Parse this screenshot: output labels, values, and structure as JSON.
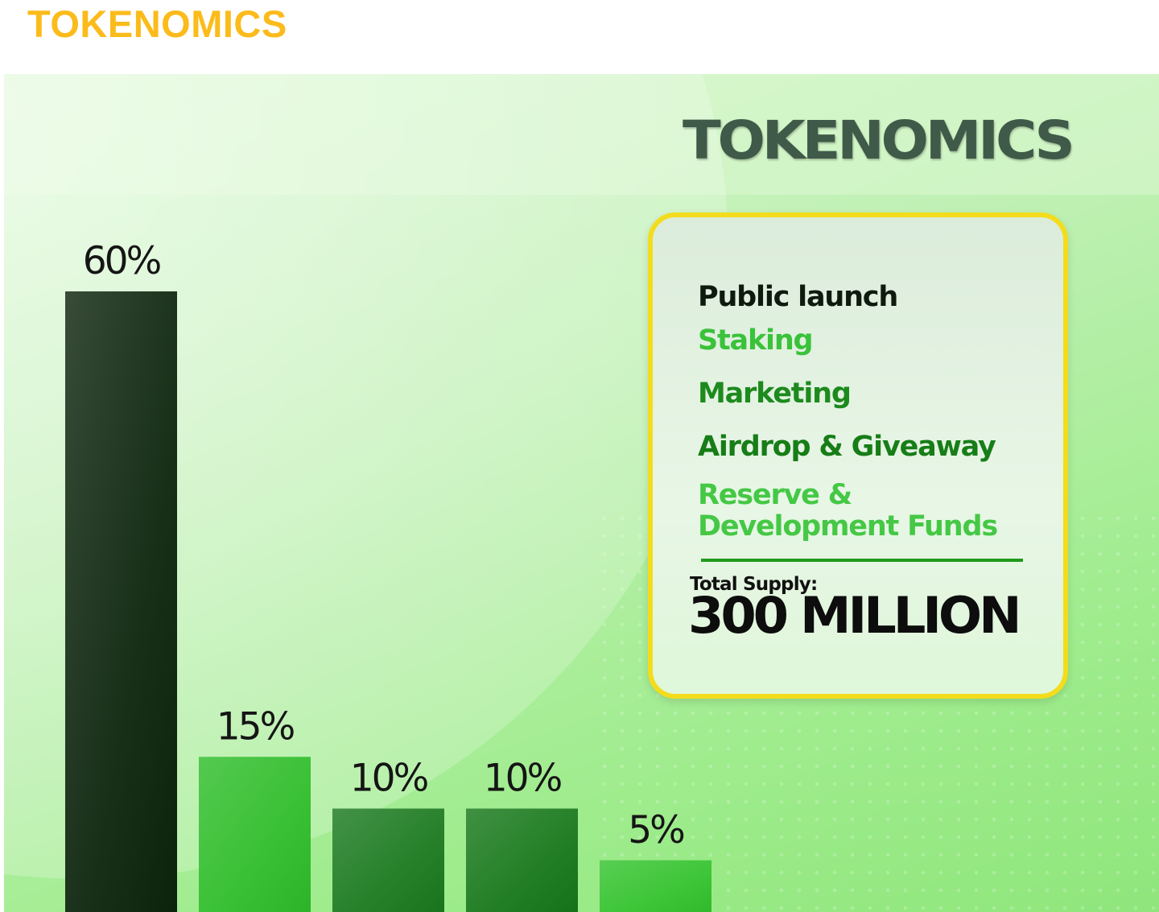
{
  "page": {
    "heading": "TOKENOMICS",
    "heading_color": "#fbbb1b"
  },
  "graphic": {
    "title": "TOKENOMICS",
    "title_color": "#3f5a49",
    "card": {
      "legend": [
        {
          "label": "Public launch",
          "color": "#0e1a0e"
        },
        {
          "label": "Staking",
          "color": "#3ac23a"
        },
        {
          "label": "Marketing",
          "color": "#1d8a1d"
        },
        {
          "label": "Airdrop & Giveaway",
          "color": "#177d17"
        },
        {
          "label": "Reserve & Development Funds",
          "color": "#45c845"
        }
      ],
      "supply_label": "Total Supply:",
      "supply_value": "300 MILLION",
      "border_color": "#f3dc1c"
    }
  },
  "chart_data": {
    "type": "bar",
    "title": "TOKENOMICS",
    "categories": [
      "Public launch",
      "Staking",
      "Marketing",
      "Airdrop & Giveaway",
      "Reserve & Development Funds"
    ],
    "values": [
      60,
      15,
      10,
      10,
      5
    ],
    "value_labels": [
      "60%",
      "15%",
      "10%",
      "10%",
      "5%"
    ],
    "colors": [
      "#0c240c",
      "#2fbd2a",
      "#1b7a1f",
      "#17781a",
      "#34c32e"
    ],
    "unit": "%",
    "ylim": [
      0,
      60
    ],
    "grid": false,
    "axes_visible": false
  }
}
